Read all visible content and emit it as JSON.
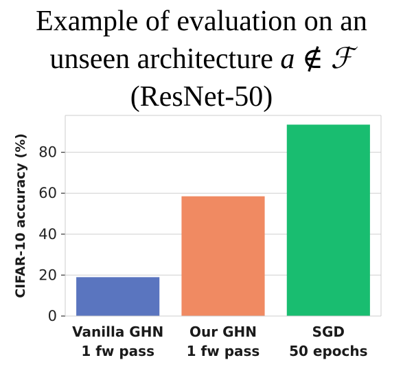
{
  "chart_data": {
    "type": "bar",
    "title_lines": [
      "Example of evaluation on an",
      "unseen architecture",
      "(ResNet-50)"
    ],
    "title_math": "a ∉ ℱ",
    "categories": [
      [
        "Vanilla GHN",
        "1 fw pass"
      ],
      [
        "Our GHN",
        "1 fw pass"
      ],
      [
        "SGD",
        "50 epochs"
      ]
    ],
    "values": [
      19,
      58.5,
      93.5
    ],
    "bar_colors": [
      "#5a75bf",
      "#f08a62",
      "#19bd70"
    ],
    "ylabel": "CIFAR-10 accuracy (%)",
    "xlabel": "",
    "ylim": [
      0,
      98
    ],
    "yticks": [
      0,
      20,
      40,
      60,
      80
    ],
    "grid": true
  }
}
